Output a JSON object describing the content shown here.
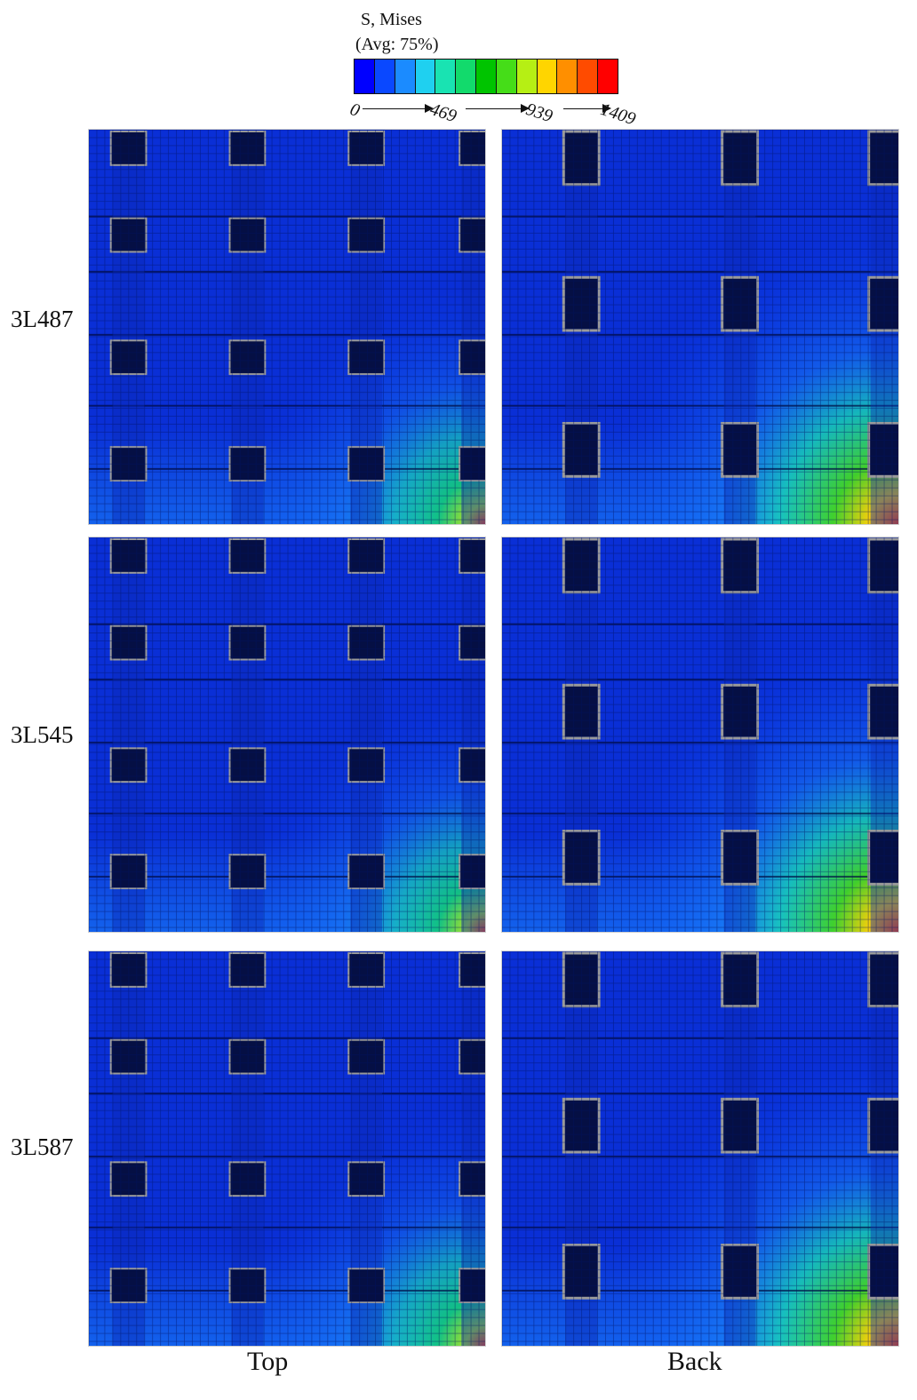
{
  "legend": {
    "title": "S, Mises",
    "subtitle": "(Avg: 75%)",
    "ticks": [
      "0",
      "469",
      "939",
      "1409"
    ],
    "colors": [
      "#0000ff",
      "#0a48ff",
      "#1b8bff",
      "#1fd0f0",
      "#19e3b2",
      "#12da6c",
      "#00c400",
      "#45dd18",
      "#b6ef14",
      "#ffd500",
      "#ff8f00",
      "#ff4b00",
      "#ff0000"
    ]
  },
  "rows": [
    {
      "label": "3L487"
    },
    {
      "label": "3L545"
    },
    {
      "label": "3L587"
    }
  ],
  "columns": [
    {
      "label": "Top"
    },
    {
      "label": "Back"
    }
  ]
}
